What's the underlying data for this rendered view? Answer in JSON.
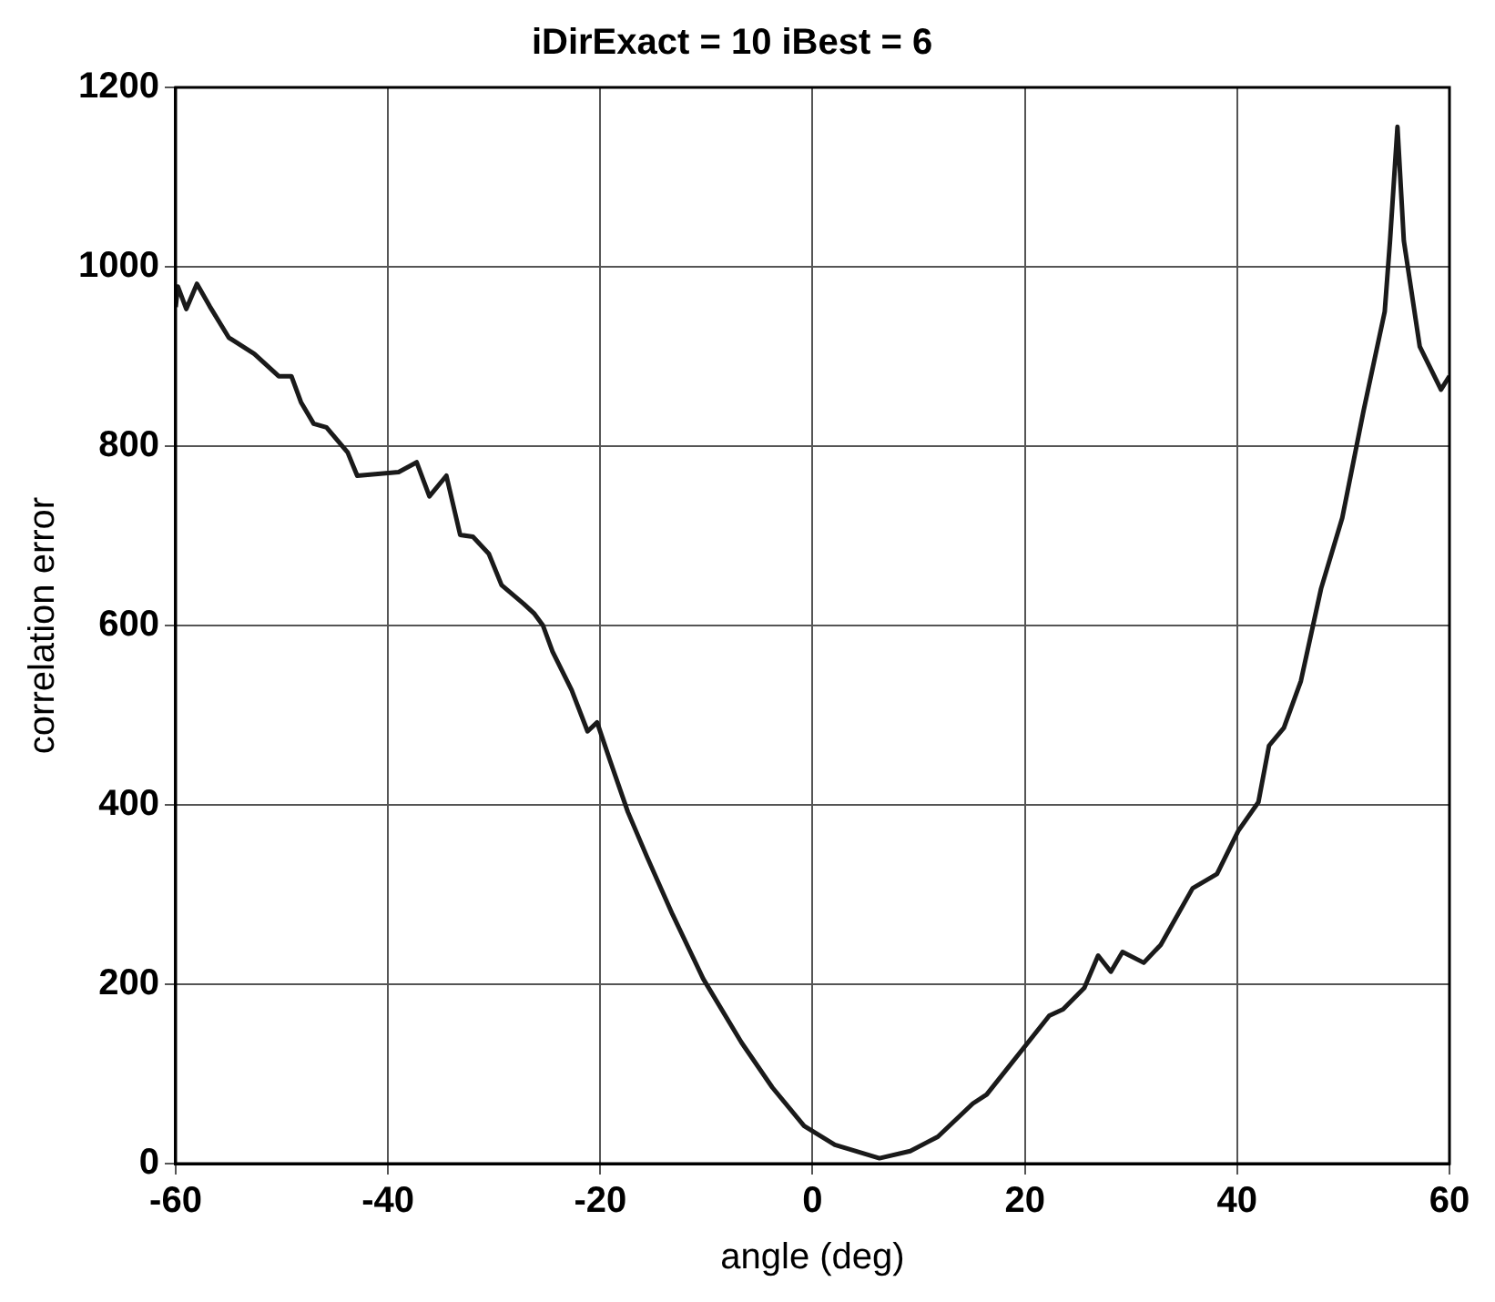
{
  "chart_data": {
    "type": "line",
    "title": "iDirExact = 10 iBest = 6",
    "xlabel": "angle (deg)",
    "ylabel": "correlation error",
    "x": [
      -60,
      -59.8,
      -59,
      -58,
      -56.8,
      -55,
      -52.6,
      -50.3,
      -49.1,
      -48.2,
      -47,
      -45.8,
      -43.8,
      -42.9,
      -39,
      -37.3,
      -36.1,
      -34.5,
      -33.2,
      -32,
      -30.5,
      -29.3,
      -27.2,
      -26.2,
      -25.4,
      -24.5,
      -22.7,
      -21.2,
      -20.3,
      -19.1,
      -17.4,
      -15.6,
      -13.2,
      -10.3,
      -6.7,
      -3.8,
      -0.8,
      2.1,
      6.3,
      9.2,
      11.8,
      15.1,
      16.4,
      22.3,
      23.6,
      25.6,
      26.9,
      28.1,
      29.2,
      31.2,
      32.8,
      35.8,
      38.1,
      40.1,
      42,
      43,
      44.4,
      46,
      47.9,
      49.9,
      51.9,
      53.9,
      54.4,
      55.1,
      55.7,
      57.2,
      59.2,
      60
    ],
    "series": [
      {
        "color": "#1a1a1a",
        "values": [
          955,
          978,
          953,
          981,
          956,
          921,
          903,
          878,
          878,
          849,
          825,
          821,
          793,
          767,
          771,
          782,
          744,
          767,
          701,
          699,
          680,
          645,
          624,
          613,
          600,
          571,
          528,
          482,
          492,
          450,
          392,
          342,
          278,
          206,
          135,
          85,
          42,
          21,
          6,
          14,
          30,
          67,
          77,
          165,
          172,
          196,
          232,
          214,
          236,
          224,
          244,
          307,
          323,
          371,
          403,
          466,
          486,
          538,
          641,
          720,
          839,
          950,
          1029,
          1156,
          1029,
          911,
          863,
          878
        ]
      }
    ],
    "xlim": [
      -60,
      60
    ],
    "xticks": [
      -60,
      -40,
      -20,
      0,
      20,
      40,
      60
    ],
    "ylim": [
      0,
      1200
    ],
    "yticks": [
      0,
      200,
      400,
      600,
      800,
      1000,
      1200
    ],
    "grid": true,
    "legend": false,
    "marker": "none",
    "line_style": "solid"
  }
}
